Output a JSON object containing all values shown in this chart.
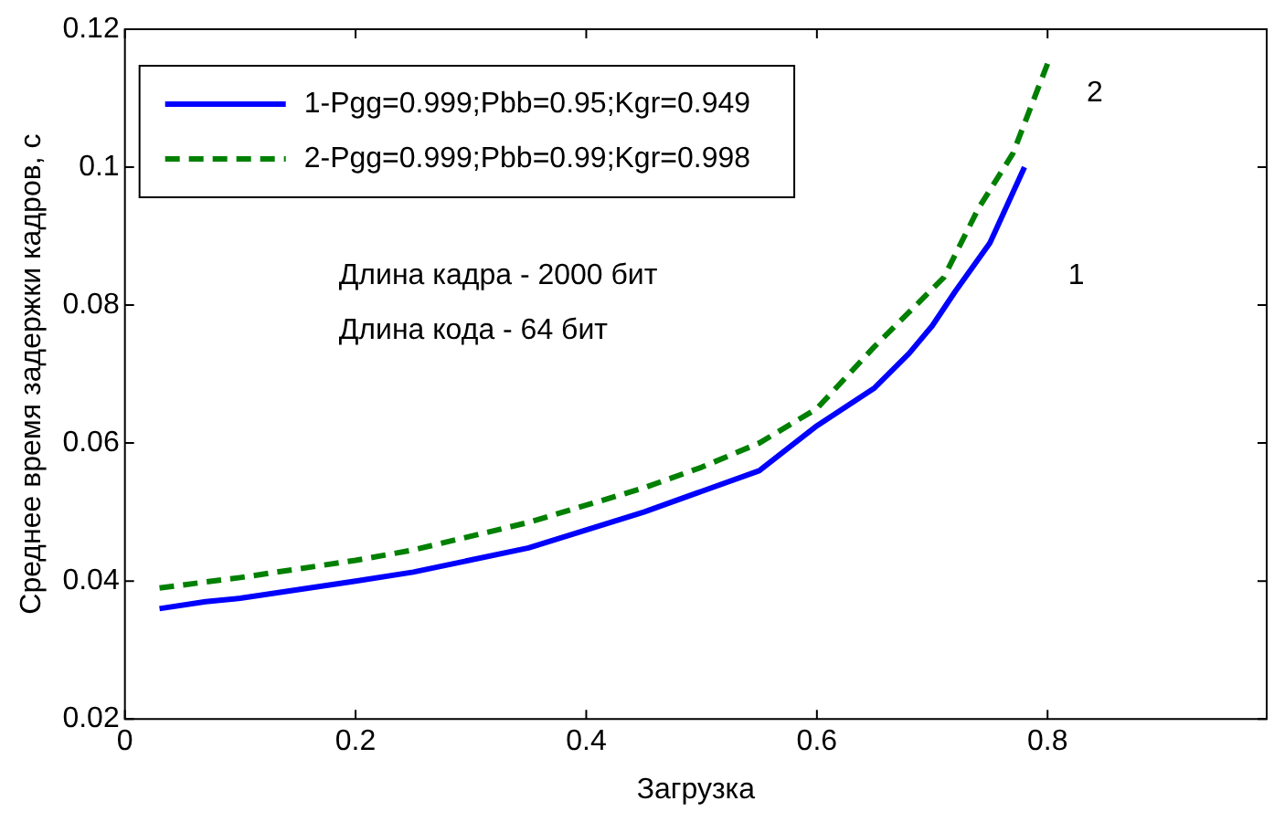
{
  "chart_data": {
    "type": "line",
    "xlabel": "Загрузка",
    "ylabel": "Среднее время задержки кадров, с",
    "xlim": [
      0,
      0.99
    ],
    "xticks": [
      0,
      0.2,
      0.4,
      0.6,
      0.8
    ],
    "ylim": [
      0.02,
      0.12
    ],
    "yticks": [
      0.02,
      0.04,
      0.06,
      0.08,
      0.1,
      0.12
    ],
    "grid": false,
    "legend": "top left",
    "marker": "none",
    "series": [
      {
        "name": "1-Pgg=0.999;Pbb=0.95;Kgr=0.949",
        "color": "#0000ff",
        "line_style": "solid",
        "x": [
          0.03,
          0.07,
          0.1,
          0.2,
          0.25,
          0.35,
          0.45,
          0.5,
          0.55,
          0.6,
          0.65,
          0.68,
          0.7,
          0.72,
          0.75,
          0.78
        ],
        "values": [
          0.036,
          0.037,
          0.0375,
          0.04,
          0.0413,
          0.0448,
          0.05,
          0.053,
          0.056,
          0.0625,
          0.068,
          0.073,
          0.077,
          0.082,
          0.089,
          0.1
        ]
      },
      {
        "name": "2-Pgg=0.999;Pbb=0.99;Kgr=0.998",
        "color": "#008000",
        "line_style": "dashed",
        "x": [
          0.03,
          0.1,
          0.2,
          0.25,
          0.35,
          0.45,
          0.5,
          0.55,
          0.6,
          0.65,
          0.68,
          0.71,
          0.74,
          0.77,
          0.8
        ],
        "values": [
          0.039,
          0.0405,
          0.043,
          0.0445,
          0.0485,
          0.0535,
          0.0565,
          0.06,
          0.065,
          0.074,
          0.079,
          0.084,
          0.094,
          0.102,
          0.115
        ]
      }
    ],
    "annotations": [
      "Длина кадра - 2000 бит",
      "Длина кода - 64 бит",
      "1",
      "2"
    ]
  }
}
